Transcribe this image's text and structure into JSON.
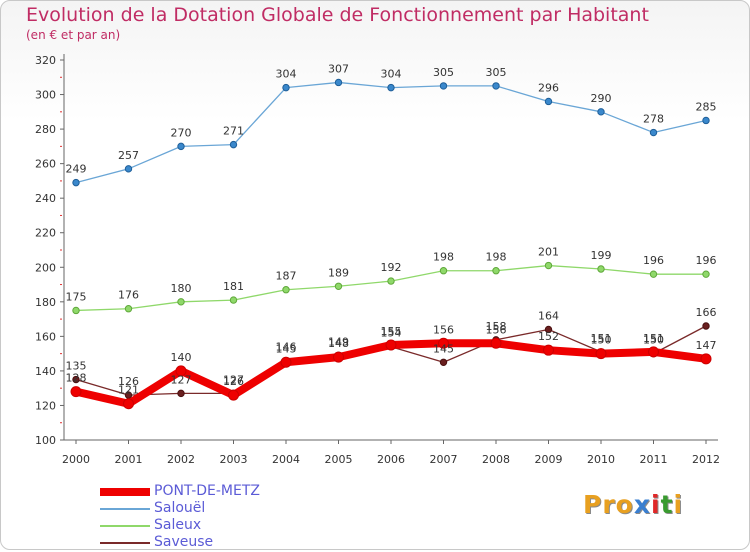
{
  "title": "Evolution de la Dotation Globale de Fonctionnement par Habitant",
  "subtitle": "(en € et par an)",
  "logo": {
    "text": "Proxiti",
    "colors": [
      "#e8a020",
      "#e8a020",
      "#e8a020",
      "#3a7fd0",
      "#e02828",
      "#3a9b30",
      "#e8a020"
    ]
  },
  "chart_data": {
    "type": "line",
    "title": "Evolution de la Dotation Globale de Fonctionnement par Habitant",
    "subtitle": "(en € et par an)",
    "xlabel": "",
    "ylabel": "",
    "ylim": [
      100,
      320
    ],
    "yticks": [
      100,
      120,
      140,
      160,
      180,
      200,
      220,
      240,
      260,
      280,
      300,
      320
    ],
    "grid": false,
    "legend": "bottom-left",
    "categories": [
      "2000",
      "2001",
      "2002",
      "2003",
      "2004",
      "2005",
      "2006",
      "2007",
      "2008",
      "2009",
      "2010",
      "2011",
      "2012"
    ],
    "series": [
      {
        "name": "PONT-DE-METZ",
        "color": "#ee0000",
        "values": [
          128,
          121,
          140,
          126,
          145,
          148,
          155,
          156,
          156,
          152,
          150,
          151,
          147
        ]
      },
      {
        "name": "Salouël",
        "color": "#6aa6d6",
        "values": [
          249,
          257,
          270,
          271,
          304,
          307,
          304,
          305,
          305,
          296,
          290,
          278,
          285
        ]
      },
      {
        "name": "Saleux",
        "color": "#8fd86a",
        "values": [
          175,
          176,
          180,
          181,
          187,
          189,
          192,
          198,
          198,
          201,
          199,
          196,
          196
        ]
      },
      {
        "name": "Saveuse",
        "color": "#7a2a2a",
        "values": [
          135,
          126,
          127,
          127,
          146,
          149,
          154,
          145,
          158,
          164,
          151,
          150,
          166
        ]
      }
    ]
  }
}
